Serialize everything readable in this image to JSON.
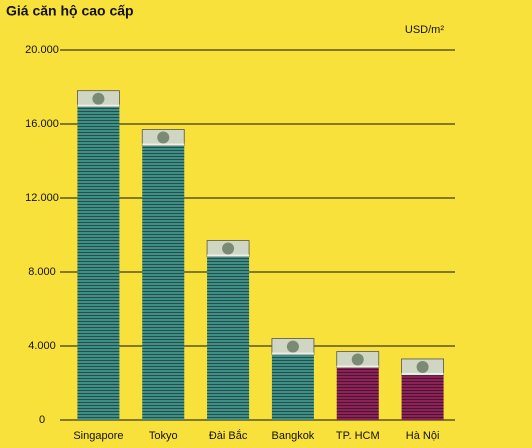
{
  "chart_data": {
    "type": "bar",
    "title": "Giá căn hộ cao cấp",
    "unit": "USD/m²",
    "categories": [
      "Singapore",
      "Tokyo",
      "Đài Bắc",
      "Bangkok",
      "TP. HCM",
      "Hà Nội"
    ],
    "values": [
      17800,
      15700,
      9700,
      4400,
      3700,
      3300
    ],
    "colors": [
      "#3f8f86",
      "#3f8f86",
      "#3f8f86",
      "#3f8f86",
      "#8c2358",
      "#8c2358"
    ],
    "ylim": [
      0,
      20000
    ],
    "yticks": [
      0,
      {
        "value": 4000,
        "label": "4.000"
      },
      {
        "value": 8000,
        "label": "8.000"
      },
      {
        "value": 12000,
        "label": "12.000"
      },
      {
        "value": 16000,
        "label": "16.000"
      },
      {
        "value": 20000,
        "label": "20.000"
      }
    ],
    "grid": true
  }
}
